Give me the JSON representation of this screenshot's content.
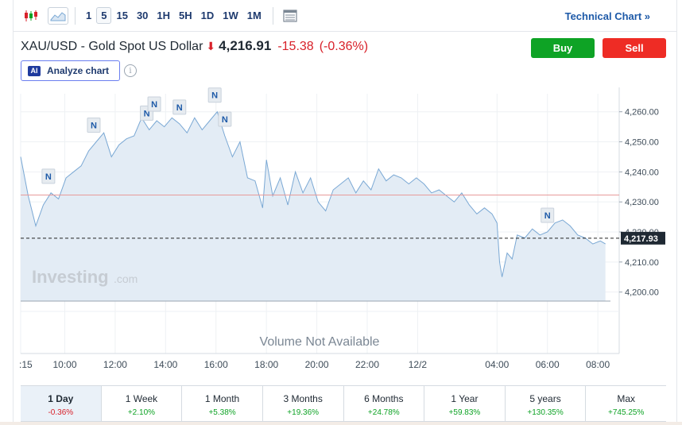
{
  "toolbar": {
    "timeframes": [
      "1",
      "5",
      "15",
      "30",
      "1H",
      "5H",
      "1D",
      "1W",
      "1M"
    ],
    "active_timeframe": "5",
    "technical_link": "Technical Chart »"
  },
  "instrument": {
    "name": "XAU/USD - Gold Spot US Dollar",
    "price": "4,216.91",
    "change": "-15.38",
    "change_pct": "(-0.36%)"
  },
  "actions": {
    "buy": "Buy",
    "sell": "Sell",
    "analyze": "Analyze chart",
    "ai_badge": "AI",
    "info": "i"
  },
  "colors": {
    "line": "#7aa8d4",
    "fill": "#e3ecf5",
    "prev_close": "#e89a9a",
    "buy": "#0ea325",
    "sell": "#ee2c25",
    "down": "#d8212a"
  },
  "chart_data": {
    "type": "area",
    "title": "",
    "xlabel": "",
    "ylabel": "",
    "ylim": [
      4197,
      4266
    ],
    "y_ticks": [
      "4,200.00",
      "4,210.00",
      "4,220.00",
      "4,230.00",
      "4,240.00",
      "4,250.00",
      "4,260.00"
    ],
    "x_ticks": [
      {
        "label": ":15",
        "t": 0
      },
      {
        "label": "10:00",
        "t": 1.75
      },
      {
        "label": "12:00",
        "t": 3.75
      },
      {
        "label": "14:00",
        "t": 5.75
      },
      {
        "label": "16:00",
        "t": 7.75
      },
      {
        "label": "18:00",
        "t": 9.75
      },
      {
        "label": "20:00",
        "t": 11.75
      },
      {
        "label": "22:00",
        "t": 13.75
      },
      {
        "label": "12/2",
        "t": 15.75
      },
      {
        "label": "04:00",
        "t": 18.9
      },
      {
        "label": "06:00",
        "t": 20.9
      },
      {
        "label": "08:00",
        "t": 22.9
      }
    ],
    "x_range": [
      0,
      23.4
    ],
    "series": [
      {
        "x": [
          0,
          0.3,
          0.6,
          0.9,
          1.2,
          1.5,
          1.8,
          2.1,
          2.4,
          2.7,
          3.0,
          3.3,
          3.6,
          3.9,
          4.2,
          4.5,
          4.8,
          5.1,
          5.4,
          5.7,
          6.0,
          6.3,
          6.6,
          6.9,
          7.2,
          7.5,
          7.8,
          8.1,
          8.4,
          8.7,
          9.0,
          9.3,
          9.6,
          9.75,
          10.0,
          10.3,
          10.6,
          10.9,
          11.2,
          11.5,
          11.8,
          12.1,
          12.4,
          12.7,
          13.0,
          13.3,
          13.6,
          13.9,
          14.2,
          14.5,
          14.8,
          15.1,
          15.4,
          15.7,
          16.0,
          16.3,
          16.6,
          16.9,
          17.2,
          17.5,
          17.8,
          18.1,
          18.4,
          18.7,
          18.9,
          19.0,
          19.1,
          19.3,
          19.5,
          19.7,
          20.0,
          20.3,
          20.6,
          20.9,
          21.2,
          21.5,
          21.8,
          22.1,
          22.4,
          22.7,
          23.0,
          23.2
        ],
        "y": [
          4245,
          4232,
          4222,
          4229,
          4233,
          4231,
          4238,
          4240,
          4242,
          4247,
          4250,
          4253,
          4245,
          4249,
          4251,
          4252,
          4258,
          4254,
          4257,
          4255,
          4258,
          4256,
          4253,
          4258,
          4254,
          4257,
          4260,
          4252,
          4245,
          4250,
          4238,
          4237,
          4228,
          4244,
          4232,
          4238,
          4229,
          4240,
          4233,
          4238,
          4230,
          4227,
          4234,
          4236,
          4238,
          4233,
          4237,
          4234,
          4241,
          4237,
          4239,
          4238,
          4236,
          4238,
          4236,
          4233,
          4234,
          4232,
          4230,
          4233,
          4229,
          4226,
          4228,
          4226,
          4223,
          4210,
          4205,
          4213,
          4211,
          4219,
          4218,
          4221,
          4219,
          4220,
          4223,
          4224,
          4222,
          4219,
          4218,
          4216,
          4217,
          4216
        ]
      }
    ],
    "prev_close": 4232.3,
    "current": 4217.93,
    "current_label": "4,217.93",
    "news_markers": [
      {
        "label": "N",
        "x": 1.1
      },
      {
        "label": "N",
        "x": 2.9
      },
      {
        "label": "N",
        "x": 5.0
      },
      {
        "label": "N",
        "x": 5.3
      },
      {
        "label": "N",
        "x": 6.3
      },
      {
        "label": "N",
        "x": 7.7
      },
      {
        "label": "N",
        "x": 8.1
      },
      {
        "label": "N",
        "x": 20.9
      }
    ],
    "grid": true,
    "watermark": "Investing.com",
    "volume_text": "Volume Not Available"
  },
  "periods": [
    {
      "label": "1 Day",
      "change": "-0.36%",
      "dir": "neg",
      "active": true
    },
    {
      "label": "1 Week",
      "change": "+2.10%",
      "dir": "pos"
    },
    {
      "label": "1 Month",
      "change": "+5.38%",
      "dir": "pos"
    },
    {
      "label": "3 Months",
      "change": "+19.36%",
      "dir": "pos"
    },
    {
      "label": "6 Months",
      "change": "+24.78%",
      "dir": "pos"
    },
    {
      "label": "1 Year",
      "change": "+59.83%",
      "dir": "pos"
    },
    {
      "label": "5 years",
      "change": "+130.35%",
      "dir": "pos"
    },
    {
      "label": "Max",
      "change": "+745.25%",
      "dir": "pos"
    }
  ]
}
